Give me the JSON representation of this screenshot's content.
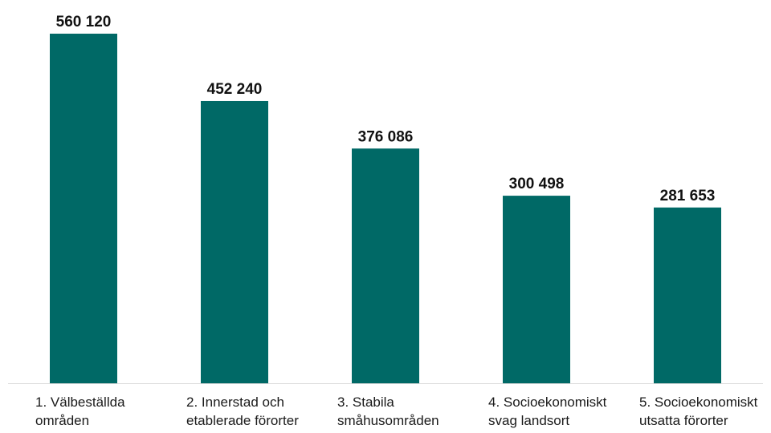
{
  "chart_data": {
    "type": "bar",
    "categories": [
      [
        "1. Välbeställda",
        "områden"
      ],
      [
        "2. Innerstad och",
        "etablerade förorter"
      ],
      [
        "3. Stabila",
        "småhusområden"
      ],
      [
        "4. Socioekonomiskt",
        "svag landsort"
      ],
      [
        "5. Socioekonomiskt",
        "utsatta förorter"
      ]
    ],
    "values": [
      560120,
      452240,
      376086,
      300498,
      281653
    ],
    "value_labels": [
      "560 120",
      "452 240",
      "376 086",
      "300 498",
      "281 653"
    ],
    "title": "",
    "xlabel": "",
    "ylabel": "",
    "ylim": [
      0,
      560120
    ],
    "grid": false,
    "legend": "none",
    "bar_color": "#006966",
    "axis_color": "#d9d9d9"
  }
}
